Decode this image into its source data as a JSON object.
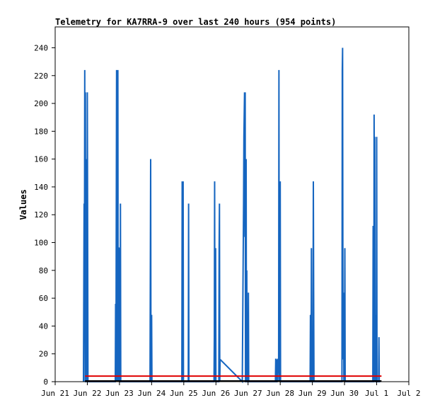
{
  "chart_data": {
    "type": "line",
    "title": "Telemetry for KA7RRA-9 over last 240 hours (954 points)",
    "ylabel": "Values",
    "xlabel": "",
    "ylim": [
      0,
      255
    ],
    "xlim": [
      0,
      11
    ],
    "y_ticks": [
      0,
      20,
      40,
      60,
      80,
      100,
      120,
      140,
      160,
      180,
      200,
      220,
      240
    ],
    "x_ticks": [
      {
        "pos": 0,
        "label": "Jun 21"
      },
      {
        "pos": 1,
        "label": "Jun 22"
      },
      {
        "pos": 2,
        "label": "Jun 23"
      },
      {
        "pos": 3,
        "label": "Jun 24"
      },
      {
        "pos": 4,
        "label": "Jun 25"
      },
      {
        "pos": 5,
        "label": "Jun 26"
      },
      {
        "pos": 6,
        "label": "Jun 27"
      },
      {
        "pos": 7,
        "label": "Jun 28"
      },
      {
        "pos": 8,
        "label": "Jun 29"
      },
      {
        "pos": 9,
        "label": "Jun 30"
      },
      {
        "pos": 10,
        "label": "Jul 1"
      },
      {
        "pos": 11,
        "label": "Jul 2"
      }
    ],
    "grid": false,
    "series": [
      {
        "color": "#1565c0",
        "x": [
          0.88,
          0.89,
          0.9,
          0.91,
          0.92,
          0.93,
          0.94,
          0.95,
          0.96,
          0.97,
          0.98,
          0.99,
          1.0,
          1.01,
          1.02,
          1.03,
          1.04,
          1.05,
          1.06,
          1.07,
          1.08,
          1.09,
          1.1,
          1.11,
          1.87,
          1.88,
          1.89,
          1.9,
          1.91,
          1.92,
          1.93,
          1.94,
          1.95,
          1.96,
          1.97,
          1.98,
          1.99,
          2.0,
          2.01,
          2.02,
          2.03,
          2.04,
          2.05,
          2.06,
          2.07,
          2.08,
          2.09,
          2.1,
          2.11,
          2.12,
          2.13,
          2.95,
          2.96,
          2.97,
          2.98,
          2.99,
          3.0,
          3.01,
          3.02,
          3.03,
          3.94,
          3.95,
          3.96,
          3.97,
          3.98,
          3.99,
          4.0,
          4.01,
          4.02,
          4.03,
          4.04,
          4.05,
          4.14,
          4.15,
          4.16,
          4.17,
          4.94,
          4.95,
          4.96,
          4.97,
          4.98,
          4.99,
          5.0,
          5.01,
          5.02,
          5.03,
          5.04,
          5.05,
          5.06,
          5.07,
          5.08,
          5.09,
          5.1,
          5.11,
          5.12,
          5.13,
          5.82,
          5.83,
          5.84,
          5.85,
          5.86,
          5.87,
          5.88,
          5.89,
          5.9,
          5.91,
          5.92,
          5.93,
          5.94,
          5.95,
          5.96,
          5.97,
          5.98,
          5.99,
          6.0,
          6.01,
          6.02,
          6.03,
          6.04,
          6.05,
          6.06,
          6.07,
          6.08,
          6.09,
          6.1,
          6.11,
          6.85,
          6.86,
          6.87,
          6.88,
          6.89,
          6.9,
          6.91,
          6.92,
          6.93,
          6.94,
          6.95,
          6.96,
          6.97,
          6.98,
          6.99,
          7.0,
          7.01,
          7.02,
          7.03,
          7.04,
          7.05,
          7.06,
          7.07,
          7.08,
          7.09,
          7.1,
          7.93,
          7.94,
          7.95,
          7.96,
          7.97,
          7.98,
          7.99,
          8.0,
          8.01,
          8.02,
          8.03,
          8.04,
          8.05,
          8.06,
          8.07,
          8.08,
          8.09,
          8.1,
          8.11,
          8.12,
          8.88,
          8.89,
          8.9,
          8.91,
          8.92,
          8.93,
          8.94,
          8.95,
          8.96,
          8.97,
          8.98,
          8.99,
          9.0,
          9.01,
          9.02,
          9.03,
          9.04,
          9.05,
          9.06,
          9.07,
          9.88,
          9.89,
          9.9,
          9.91,
          9.92,
          9.93,
          9.94,
          9.95,
          9.96,
          9.97,
          9.98,
          9.99,
          10.0,
          10.01,
          10.02,
          10.03,
          10.04,
          10.05,
          10.06,
          10.07,
          10.08,
          10.09,
          10.1,
          10.11
        ],
        "values": [
          0,
          64,
          128,
          64,
          224,
          0,
          208,
          0,
          0,
          64,
          160,
          0,
          208,
          112,
          0,
          0,
          0,
          0,
          0,
          0,
          0,
          0,
          0,
          0,
          0,
          56,
          0,
          112,
          224,
          0,
          224,
          128,
          224,
          0,
          96,
          96,
          0,
          96,
          0,
          0,
          128,
          0,
          0,
          0,
          0,
          0,
          0,
          0,
          0,
          0,
          0,
          0,
          80,
          160,
          0,
          0,
          48,
          0,
          0,
          0,
          0,
          144,
          0,
          96,
          144,
          0,
          0,
          0,
          0,
          0,
          0,
          0,
          0,
          128,
          0,
          0,
          0,
          32,
          144,
          0,
          72,
          96,
          0,
          0,
          0,
          0,
          0,
          0,
          0,
          0,
          0,
          0,
          96,
          128,
          0,
          16,
          0,
          32,
          64,
          96,
          128,
          176,
          192,
          208,
          104,
          208,
          0,
          0,
          160,
          0,
          80,
          0,
          0,
          0,
          0,
          64,
          0,
          0,
          0,
          0,
          0,
          0,
          0,
          0,
          0,
          0,
          0,
          16,
          16,
          0,
          0,
          0,
          16,
          0,
          16,
          16,
          6,
          224,
          0,
          32,
          0,
          144,
          0,
          0,
          0,
          0,
          0,
          0,
          0,
          0,
          0,
          0,
          0,
          48,
          0,
          0,
          96,
          0,
          0,
          0,
          0,
          32,
          144,
          64,
          0,
          0,
          0,
          0,
          0,
          0,
          0,
          0,
          0,
          0,
          0,
          0,
          0,
          224,
          240,
          64,
          16,
          64,
          0,
          48,
          0,
          96,
          0,
          0,
          0,
          0,
          0,
          0,
          0,
          112,
          0,
          0,
          192,
          128,
          176,
          0,
          48,
          0,
          0,
          0,
          176,
          0,
          0,
          0,
          0,
          0,
          0,
          32,
          0,
          0,
          0,
          0
        ]
      },
      {
        "color": "#e00000",
        "x": [
          0.93,
          10.15
        ],
        "values": [
          4,
          4
        ]
      },
      {
        "color": "#000000",
        "x": [
          0.93,
          10.15
        ],
        "values": [
          0.5,
          0.5
        ]
      }
    ]
  }
}
